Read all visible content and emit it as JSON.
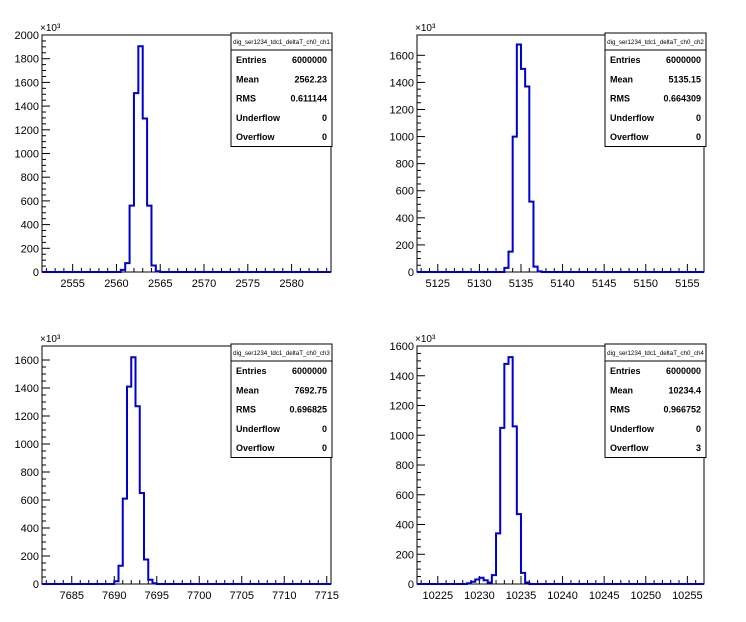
{
  "chart_data": [
    {
      "type": "histogram",
      "stats": {
        "title": "dig_ser1234_tdc1_deltaT_ch0_ch1",
        "rows": [
          {
            "label": "Entries",
            "value": "6000000"
          },
          {
            "label": "Mean",
            "value": "2562.23"
          },
          {
            "label": "RMS",
            "value": "0.611144"
          },
          {
            "label": "Underflow",
            "value": "0"
          },
          {
            "label": "Overflow",
            "value": "0"
          }
        ]
      },
      "xlim": [
        2551.5,
        2584.5
      ],
      "ylim": [
        0,
        2000
      ],
      "y_multiplier": "×10³",
      "x_ticks": [
        2555,
        2560,
        2565,
        2570,
        2575,
        2580
      ],
      "y_ticks": [
        0,
        200,
        400,
        600,
        800,
        1000,
        1200,
        1400,
        1600,
        1800,
        2000
      ],
      "bin_width": 0.5,
      "bins": [
        {
          "x": 2560.5,
          "y": 18
        },
        {
          "x": 2561.0,
          "y": 75
        },
        {
          "x": 2561.5,
          "y": 560
        },
        {
          "x": 2562.0,
          "y": 1510
        },
        {
          "x": 2562.5,
          "y": 1905
        },
        {
          "x": 2563.0,
          "y": 1295
        },
        {
          "x": 2563.5,
          "y": 560
        },
        {
          "x": 2564.0,
          "y": 55
        },
        {
          "x": 2564.5,
          "y": 6
        }
      ],
      "line_color": "#0000cc"
    },
    {
      "type": "histogram",
      "stats": {
        "title": "dig_ser1234_tdc1_deltaT_ch0_ch2",
        "rows": [
          {
            "label": "Entries",
            "value": "6000000"
          },
          {
            "label": "Mean",
            "value": "5135.15"
          },
          {
            "label": "RMS",
            "value": "0.664309"
          },
          {
            "label": "Underflow",
            "value": "0"
          },
          {
            "label": "Overflow",
            "value": "0"
          }
        ]
      },
      "xlim": [
        5122.5,
        5157.0
      ],
      "ylim": [
        0,
        1750
      ],
      "y_multiplier": "×10³",
      "x_ticks": [
        5125,
        5130,
        5135,
        5140,
        5145,
        5150,
        5155
      ],
      "y_ticks": [
        0,
        200,
        400,
        600,
        800,
        1000,
        1200,
        1400,
        1600
      ],
      "bin_width": 0.5,
      "bins": [
        {
          "x": 5133.0,
          "y": 30
        },
        {
          "x": 5133.5,
          "y": 150
        },
        {
          "x": 5134.0,
          "y": 1000
        },
        {
          "x": 5134.5,
          "y": 1680
        },
        {
          "x": 5135.0,
          "y": 1500
        },
        {
          "x": 5135.5,
          "y": 1370
        },
        {
          "x": 5136.0,
          "y": 520
        },
        {
          "x": 5136.5,
          "y": 40
        },
        {
          "x": 5137.0,
          "y": 5
        }
      ],
      "line_color": "#0000cc"
    },
    {
      "type": "histogram",
      "stats": {
        "title": "dig_ser1234_tdc1_deltaT_ch0_ch3",
        "rows": [
          {
            "label": "Entries",
            "value": "6000000"
          },
          {
            "label": "Mean",
            "value": "7692.75"
          },
          {
            "label": "RMS",
            "value": "0.696825"
          },
          {
            "label": "Underflow",
            "value": "0"
          },
          {
            "label": "Overflow",
            "value": "0"
          }
        ]
      },
      "xlim": [
        7681.5,
        7715.5
      ],
      "ylim": [
        0,
        1700
      ],
      "y_multiplier": "×10³",
      "x_ticks": [
        7685,
        7690,
        7695,
        7700,
        7705,
        7710,
        7715
      ],
      "y_ticks": [
        0,
        200,
        400,
        600,
        800,
        1000,
        1200,
        1400,
        1600
      ],
      "bin_width": 0.5,
      "bins": [
        {
          "x": 7690.0,
          "y": 20
        },
        {
          "x": 7690.5,
          "y": 130
        },
        {
          "x": 7691.0,
          "y": 610
        },
        {
          "x": 7691.5,
          "y": 1410
        },
        {
          "x": 7692.0,
          "y": 1620
        },
        {
          "x": 7692.5,
          "y": 1270
        },
        {
          "x": 7693.0,
          "y": 650
        },
        {
          "x": 7693.5,
          "y": 175
        },
        {
          "x": 7694.0,
          "y": 30
        },
        {
          "x": 7694.5,
          "y": 5
        }
      ],
      "line_color": "#0000cc"
    },
    {
      "type": "histogram",
      "stats": {
        "title": "dig_ser1234_tdc1_deltaT_ch0_ch4",
        "rows": [
          {
            "label": "Entries",
            "value": "6000000"
          },
          {
            "label": "Mean",
            "value": "10234.4"
          },
          {
            "label": "RMS",
            "value": "0.966752"
          },
          {
            "label": "Underflow",
            "value": "0"
          },
          {
            "label": "Overflow",
            "value": "3"
          }
        ]
      },
      "xlim": [
        10222.5,
        10257.0
      ],
      "ylim": [
        0,
        1600
      ],
      "y_multiplier": "×10³",
      "x_ticks": [
        10225,
        10230,
        10235,
        10240,
        10245,
        10250,
        10255
      ],
      "y_ticks": [
        0,
        200,
        400,
        600,
        800,
        1000,
        1200,
        1400,
        1600
      ],
      "bin_width": 0.5,
      "bins": [
        {
          "x": 10228.5,
          "y": 5
        },
        {
          "x": 10229.0,
          "y": 15
        },
        {
          "x": 10229.5,
          "y": 30
        },
        {
          "x": 10230.0,
          "y": 42
        },
        {
          "x": 10230.5,
          "y": 25
        },
        {
          "x": 10231.0,
          "y": 10
        },
        {
          "x": 10231.5,
          "y": 60
        },
        {
          "x": 10232.0,
          "y": 340
        },
        {
          "x": 10232.5,
          "y": 1050
        },
        {
          "x": 10233.0,
          "y": 1480
        },
        {
          "x": 10233.5,
          "y": 1525
        },
        {
          "x": 10234.0,
          "y": 1060
        },
        {
          "x": 10234.5,
          "y": 470
        },
        {
          "x": 10235.0,
          "y": 75
        },
        {
          "x": 10235.5,
          "y": 10
        }
      ],
      "line_color": "#0000cc"
    }
  ]
}
